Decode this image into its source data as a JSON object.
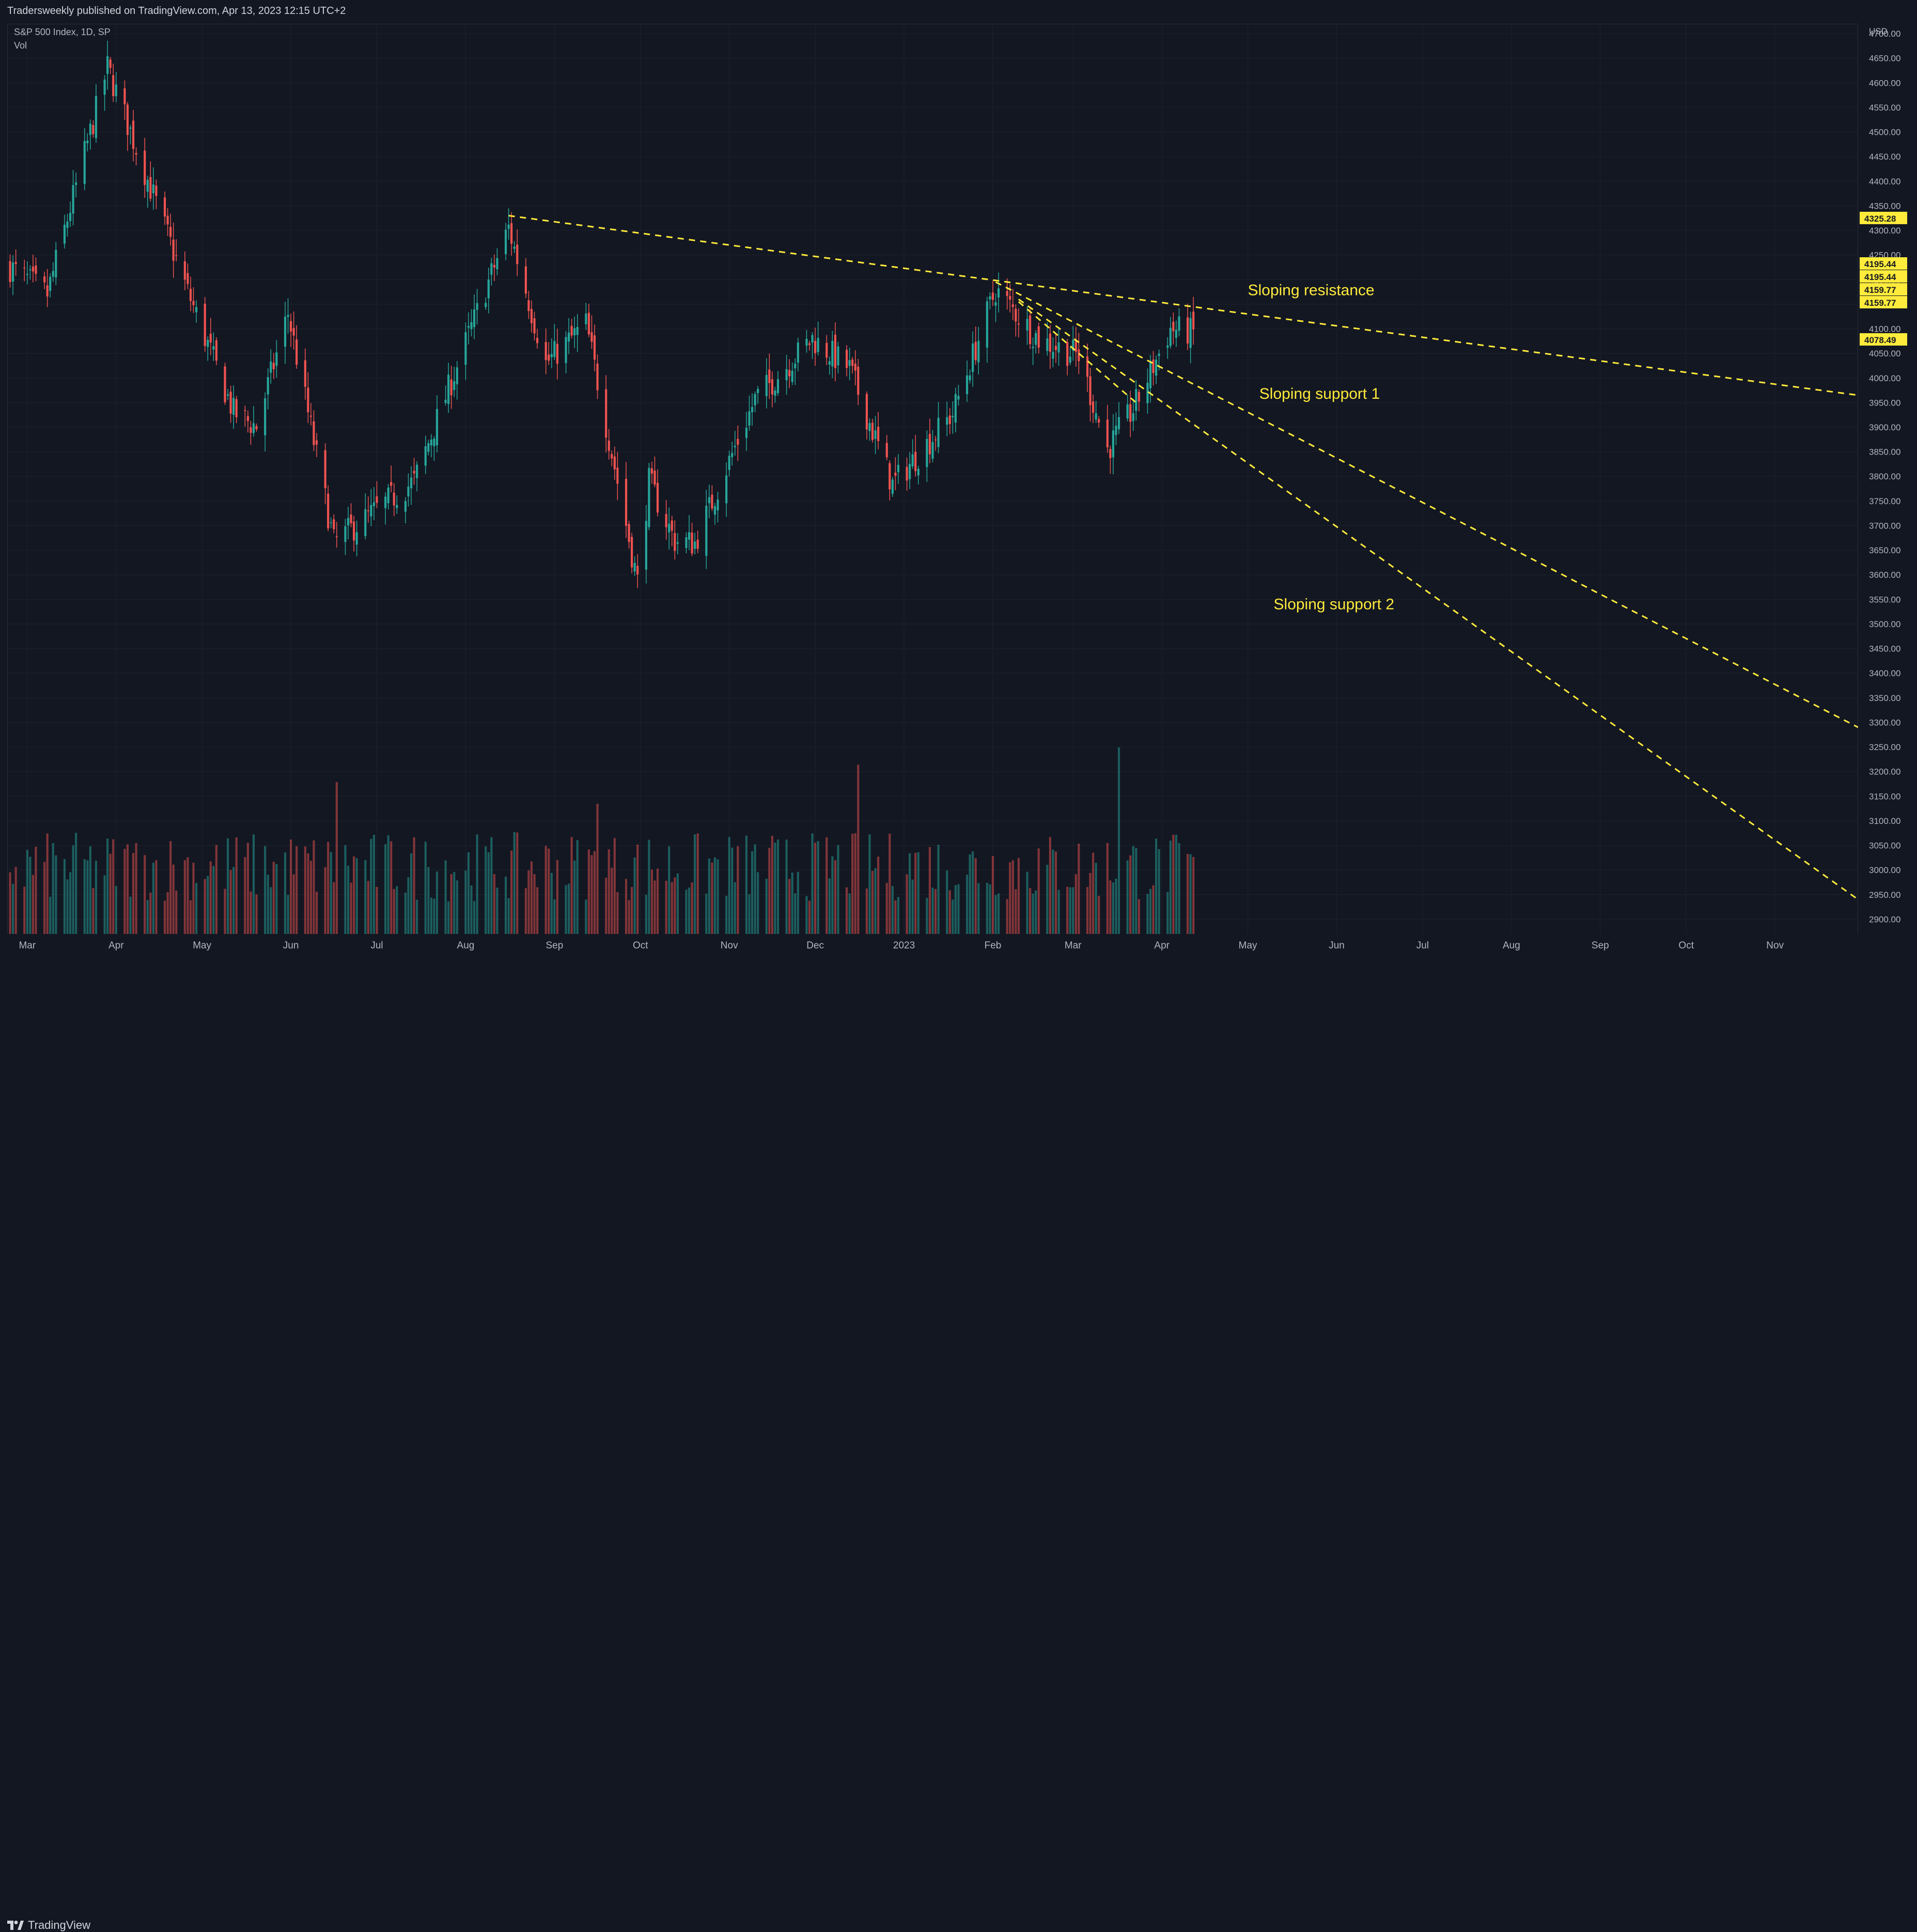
{
  "header": {
    "published_by": "Tradersweekly published on TradingView.com, Apr 13, 2023 12:15 UTC+2",
    "symbol_line": "S&P 500 Index, 1D, SP",
    "volume_label": "Vol"
  },
  "footer": {
    "brand": "TradingView"
  },
  "colors": {
    "background": "#131722",
    "up": "#26a69a",
    "down": "#ef5350",
    "trendline": "#ffeb3b",
    "grid": "#1e222d"
  },
  "chart_data": {
    "type": "candlestick",
    "currency": "USD",
    "y_axis": {
      "unit_label": "USD",
      "ticks": [
        4700,
        4650,
        4600,
        4550,
        4500,
        4450,
        4400,
        4350,
        4300,
        4250,
        4200,
        4150,
        4100,
        4050,
        4000,
        3950,
        3900,
        3850,
        3800,
        3750,
        3700,
        3650,
        3600,
        3550,
        3500,
        3450,
        3400,
        3350,
        3300,
        3250,
        3200,
        3150,
        3100,
        3050,
        3000,
        2950,
        2900
      ],
      "tick_labels": [
        "4700.00",
        "4650.00",
        "4600.00",
        "4550.00",
        "4500.00",
        "4450.00",
        "4400.00",
        "4350.00",
        "4300.00",
        "4250.00",
        "4200.00",
        "4150.00",
        "4100.00",
        "4050.00",
        "4000.00",
        "3950.00",
        "3900.00",
        "3850.00",
        "3800.00",
        "3750.00",
        "3700.00",
        "3650.00",
        "3600.00",
        "3550.00",
        "3500.00",
        "3450.00",
        "3400.00",
        "3350.00",
        "3300.00",
        "3250.00",
        "3200.00",
        "3150.00",
        "3100.00",
        "3050.00",
        "3000.00",
        "2950.00",
        "2900.00"
      ],
      "range": [
        2870,
        4720
      ]
    },
    "x_axis": {
      "month_labels": [
        "Mar",
        "Apr",
        "May",
        "Jun",
        "Jul",
        "Aug",
        "Sep",
        "Oct",
        "Nov",
        "Dec",
        "2023",
        "Feb",
        "Mar",
        "Apr",
        "May",
        "Jun",
        "Jul",
        "Aug",
        "Sep",
        "Oct",
        "Nov"
      ],
      "range": [
        "2022-02-22",
        "2023-11-30"
      ]
    },
    "price_labels": [
      {
        "text": "4325.28",
        "value": 4325.28
      },
      {
        "text": "4195.44",
        "value": 4195.44
      },
      {
        "text": "4195.44",
        "value": 4195.44
      },
      {
        "text": "4159.77",
        "value": 4159.77
      },
      {
        "text": "4159.77",
        "value": 4159.77
      },
      {
        "text": "4078.49",
        "value": 4078.49
      }
    ],
    "anchor_points": [
      {
        "date": "2022-02-23",
        "close": 4225
      },
      {
        "date": "2022-03-08",
        "close": 4170
      },
      {
        "date": "2022-03-29",
        "close": 4631
      },
      {
        "date": "2022-04-26",
        "close": 4175
      },
      {
        "date": "2022-05-12",
        "close": 3930
      },
      {
        "date": "2022-05-20",
        "close": 3901
      },
      {
        "date": "2022-05-31",
        "close": 4132
      },
      {
        "date": "2022-06-16",
        "close": 3666
      },
      {
        "date": "2022-07-14",
        "close": 3790
      },
      {
        "date": "2022-08-16",
        "close": 4305
      },
      {
        "date": "2022-08-29",
        "close": 4030
      },
      {
        "date": "2022-09-12",
        "close": 4110
      },
      {
        "date": "2022-09-30",
        "close": 3585
      },
      {
        "date": "2022-10-04",
        "close": 3790
      },
      {
        "date": "2022-10-13",
        "close": 3669
      },
      {
        "date": "2022-10-20",
        "close": 3665
      },
      {
        "date": "2022-11-10",
        "close": 3956
      },
      {
        "date": "2022-11-30",
        "close": 4080
      },
      {
        "date": "2022-12-13",
        "close": 4019
      },
      {
        "date": "2022-12-28",
        "close": 3783
      },
      {
        "date": "2023-01-18",
        "close": 3928
      },
      {
        "date": "2023-02-02",
        "close": 4179
      },
      {
        "date": "2023-02-17",
        "close": 4079
      },
      {
        "date": "2023-03-03",
        "close": 4045
      },
      {
        "date": "2023-03-13",
        "close": 3855
      },
      {
        "date": "2023-03-22",
        "close": 3936
      },
      {
        "date": "2023-04-04",
        "close": 4100
      },
      {
        "date": "2023-04-12",
        "close": 4092
      }
    ],
    "volume_relative": {
      "min": 0.15,
      "max": 0.55,
      "spikes": [
        {
          "date": "2022-06-17",
          "v": 0.7
        },
        {
          "date": "2022-09-16",
          "v": 0.6
        },
        {
          "date": "2022-12-16",
          "v": 0.78
        },
        {
          "date": "2023-03-17",
          "v": 0.86
        }
      ]
    },
    "trendlines": [
      {
        "name": "Sloping resistance",
        "from": {
          "date": "2022-08-16",
          "value": 4330
        },
        "to": {
          "date": "2023-11-30",
          "value": 3965
        }
      },
      {
        "name": "Sloping support 1",
        "from": {
          "date": "2023-02-02",
          "value": 4195
        },
        "to": {
          "date": "2023-11-30",
          "value": 3290
        }
      },
      {
        "name": "Sloping support 2",
        "from": {
          "date": "2023-02-10",
          "value": 4160
        },
        "to": {
          "date": "2023-11-30",
          "value": 2940
        }
      },
      {
        "name": "",
        "from": {
          "date": "2023-02-10",
          "value": 4155
        },
        "to": {
          "date": "2023-03-24",
          "value": 3945
        }
      }
    ],
    "annotations": [
      {
        "text": "Sloping resistance",
        "date": "2023-05-01",
        "value": 4168
      },
      {
        "text": "Sloping support 1",
        "date": "2023-05-05",
        "value": 3958
      },
      {
        "text": "Sloping support 2",
        "date": "2023-05-10",
        "value": 3530
      }
    ]
  }
}
